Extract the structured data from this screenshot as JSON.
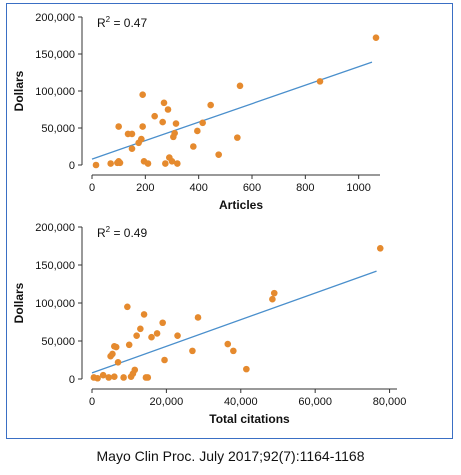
{
  "caption": "Mayo Clin Proc.  July 2017;92(7):1164-1168",
  "colors": {
    "point": "#e58a2e",
    "trend": "#4a8fcc",
    "axis": "#333333",
    "frame": "#3a6fc4"
  },
  "chart_data": [
    {
      "type": "scatter",
      "title": "",
      "xlabel": "Articles",
      "ylabel": "Dollars",
      "annotation": {
        "prefix": "R",
        "sup": "2",
        "suffix": " = 0.47"
      },
      "xlim": [
        0,
        1080
      ],
      "ylim": [
        0,
        200000
      ],
      "xticks": [
        0,
        200,
        400,
        600,
        800,
        1000
      ],
      "xtick_labels": [
        "0",
        "200",
        "400",
        "600",
        "800",
        "1000"
      ],
      "yticks": [
        0,
        50000,
        100000,
        150000,
        200000
      ],
      "ytick_labels": [
        "0",
        "50,000",
        "100,000",
        "150,000",
        "200,000"
      ],
      "trendline": {
        "x": [
          0,
          1050
        ],
        "y": [
          8000,
          139000
        ]
      },
      "points": [
        {
          "x": 15,
          "y": 0
        },
        {
          "x": 70,
          "y": 2000
        },
        {
          "x": 95,
          "y": 3000
        },
        {
          "x": 100,
          "y": 5000
        },
        {
          "x": 105,
          "y": 3000
        },
        {
          "x": 100,
          "y": 52000
        },
        {
          "x": 135,
          "y": 42000
        },
        {
          "x": 150,
          "y": 42000
        },
        {
          "x": 150,
          "y": 22000
        },
        {
          "x": 175,
          "y": 30000
        },
        {
          "x": 185,
          "y": 35000
        },
        {
          "x": 190,
          "y": 52000
        },
        {
          "x": 190,
          "y": 95000
        },
        {
          "x": 195,
          "y": 5000
        },
        {
          "x": 210,
          "y": 2000
        },
        {
          "x": 235,
          "y": 66000
        },
        {
          "x": 265,
          "y": 58000
        },
        {
          "x": 270,
          "y": 84000
        },
        {
          "x": 285,
          "y": 75000
        },
        {
          "x": 275,
          "y": 2000
        },
        {
          "x": 290,
          "y": 10000
        },
        {
          "x": 300,
          "y": 5000
        },
        {
          "x": 305,
          "y": 38000
        },
        {
          "x": 310,
          "y": 43000
        },
        {
          "x": 315,
          "y": 56000
        },
        {
          "x": 320,
          "y": 2000
        },
        {
          "x": 380,
          "y": 25000
        },
        {
          "x": 395,
          "y": 46000
        },
        {
          "x": 415,
          "y": 57000
        },
        {
          "x": 445,
          "y": 81000
        },
        {
          "x": 475,
          "y": 14000
        },
        {
          "x": 545,
          "y": 37000
        },
        {
          "x": 555,
          "y": 107000
        },
        {
          "x": 855,
          "y": 113000
        },
        {
          "x": 1065,
          "y": 172000
        }
      ]
    },
    {
      "type": "scatter",
      "title": "",
      "xlabel": "Total citations",
      "ylabel": "Dollars",
      "annotation": {
        "prefix": "R",
        "sup": "2",
        "suffix": " = 0.49"
      },
      "xlim": [
        0,
        82000
      ],
      "ylim": [
        0,
        200000
      ],
      "xticks": [
        0,
        20000,
        40000,
        60000,
        80000
      ],
      "xtick_labels": [
        "0",
        "20,000",
        "40,000",
        "60,000",
        "80,000"
      ],
      "yticks": [
        0,
        50000,
        100000,
        150000,
        200000
      ],
      "ytick_labels": [
        "0",
        "50,000",
        "100,000",
        "150,000",
        "200,000"
      ],
      "trendline": {
        "x": [
          0,
          76500
        ],
        "y": [
          8000,
          142000
        ]
      },
      "points": [
        {
          "x": 500,
          "y": 2000
        },
        {
          "x": 1500,
          "y": 1000
        },
        {
          "x": 3000,
          "y": 5000
        },
        {
          "x": 4500,
          "y": 2000
        },
        {
          "x": 5000,
          "y": 30000
        },
        {
          "x": 5500,
          "y": 33000
        },
        {
          "x": 6000,
          "y": 43000
        },
        {
          "x": 6500,
          "y": 42000
        },
        {
          "x": 6000,
          "y": 3000
        },
        {
          "x": 7000,
          "y": 22000
        },
        {
          "x": 8500,
          "y": 2000
        },
        {
          "x": 9500,
          "y": 95000
        },
        {
          "x": 10000,
          "y": 45000
        },
        {
          "x": 10500,
          "y": 3000
        },
        {
          "x": 11000,
          "y": 7000
        },
        {
          "x": 11500,
          "y": 12000
        },
        {
          "x": 12000,
          "y": 57000
        },
        {
          "x": 13000,
          "y": 66000
        },
        {
          "x": 14000,
          "y": 85000
        },
        {
          "x": 14500,
          "y": 2000
        },
        {
          "x": 15000,
          "y": 2000
        },
        {
          "x": 16000,
          "y": 55000
        },
        {
          "x": 17500,
          "y": 60000
        },
        {
          "x": 19000,
          "y": 74000
        },
        {
          "x": 19500,
          "y": 25000
        },
        {
          "x": 23000,
          "y": 57000
        },
        {
          "x": 27000,
          "y": 37000
        },
        {
          "x": 28500,
          "y": 81000
        },
        {
          "x": 36500,
          "y": 46000
        },
        {
          "x": 38000,
          "y": 37000
        },
        {
          "x": 41500,
          "y": 13000
        },
        {
          "x": 48500,
          "y": 105000
        },
        {
          "x": 49000,
          "y": 113000
        },
        {
          "x": 77500,
          "y": 172000
        }
      ]
    }
  ]
}
